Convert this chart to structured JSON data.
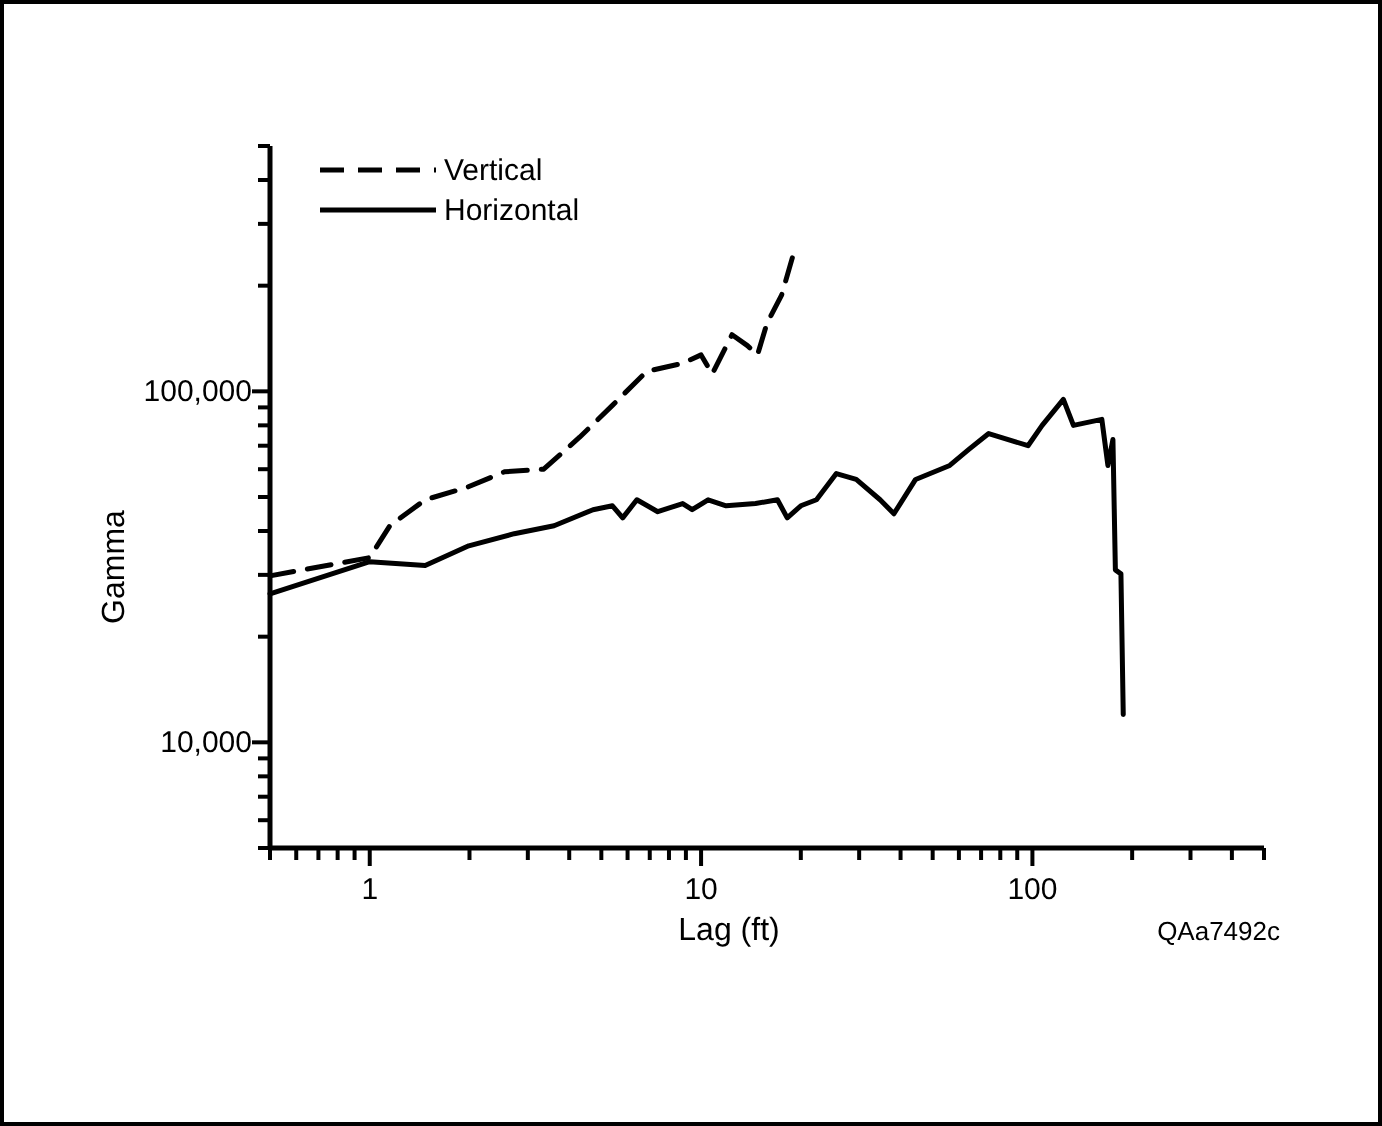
{
  "chart_data": {
    "type": "line",
    "xlabel": "Lag (ft)",
    "ylabel": "Gamma",
    "log": "xy",
    "legend": "top left",
    "annotations": [
      "QAa7492c"
    ],
    "xlim": [
      0.5,
      500
    ],
    "ylim": [
      5000,
      500000
    ],
    "xticks": [
      {
        "value": 0.5,
        "label": null
      },
      {
        "value": 0.6,
        "label": null
      },
      {
        "value": 0.7,
        "label": null
      },
      {
        "value": 0.8,
        "label": null
      },
      {
        "value": 0.9,
        "label": null
      },
      1,
      {
        "value": 2,
        "label": null
      },
      {
        "value": 3,
        "label": null
      },
      {
        "value": 4,
        "label": null
      },
      {
        "value": 5,
        "label": null
      },
      {
        "value": 6,
        "label": null
      },
      {
        "value": 7,
        "label": null
      },
      {
        "value": 8,
        "label": null
      },
      {
        "value": 9,
        "label": null
      },
      10,
      {
        "value": 20,
        "label": null
      },
      {
        "value": 30,
        "label": null
      },
      {
        "value": 40,
        "label": null
      },
      {
        "value": 50,
        "label": null
      },
      {
        "value": 60,
        "label": null
      },
      {
        "value": 70,
        "label": null
      },
      {
        "value": 80,
        "label": null
      },
      {
        "value": 90,
        "label": null
      },
      100,
      {
        "value": 200,
        "label": null
      },
      {
        "value": 300,
        "label": null
      },
      {
        "value": 400,
        "label": null
      },
      {
        "value": 500,
        "label": null
      }
    ],
    "yticks": [
      {
        "value": 5000,
        "label": null
      },
      {
        "value": 6000,
        "label": null
      },
      {
        "value": 7000,
        "label": null
      },
      {
        "value": 8000,
        "label": null
      },
      {
        "value": 9000,
        "label": null
      },
      {
        "value": 10000,
        "label": "10,000"
      },
      {
        "value": 20000,
        "label": null
      },
      {
        "value": 30000,
        "label": null
      },
      {
        "value": 40000,
        "label": null
      },
      {
        "value": 50000,
        "label": null
      },
      {
        "value": 60000,
        "label": null
      },
      {
        "value": 70000,
        "label": null
      },
      {
        "value": 80000,
        "label": null
      },
      {
        "value": 90000,
        "label": null
      },
      {
        "value": 100000,
        "label": "100,000"
      },
      {
        "value": 200000,
        "label": null
      },
      {
        "value": 300000,
        "label": null
      },
      {
        "value": 400000,
        "label": null
      },
      {
        "value": 500000,
        "label": null
      }
    ],
    "series": [
      {
        "name": "Vertical",
        "color": "#000000",
        "line_style": "dashed",
        "x": [
          0.5,
          1,
          1.15,
          1.47,
          1.96,
          2.55,
          3.35,
          4.3,
          5.4,
          6.85,
          8.75,
          10,
          10.8,
          12.4,
          13.8,
          14.8,
          15.8,
          17.5,
          19.2
        ],
        "values": [
          29800,
          33600,
          41400,
          49100,
          53200,
          59000,
          60000,
          74000,
          91200,
          114000,
          120000,
          127000,
          112000,
          145000,
          135000,
          127000,
          156000,
          188000,
          255000
        ]
      },
      {
        "name": "Horizontal",
        "color": "#000000",
        "line_style": "solid",
        "x": [
          0.5,
          1,
          1.47,
          1.99,
          2.73,
          3.6,
          4.72,
          5.4,
          5.8,
          6.4,
          7.4,
          8.8,
          9.4,
          10.5,
          11.9,
          14.6,
          17,
          18.2,
          20,
          22.3,
          25.6,
          29.4,
          34.7,
          38.2,
          44.4,
          56.3,
          64.3,
          73.8,
          97,
          107,
          124,
          133,
          162,
          169,
          175,
          178,
          185,
          188
        ],
        "values": [
          26500,
          32700,
          31900,
          36300,
          39300,
          41400,
          46000,
          47200,
          43600,
          49100,
          45400,
          47900,
          46000,
          49100,
          47200,
          47900,
          49100,
          43600,
          47200,
          49100,
          58300,
          56100,
          49100,
          44800,
          56100,
          61500,
          68300,
          75800,
          70000,
          80000,
          94900,
          80000,
          83200,
          61500,
          72900,
          31000,
          30200,
          12000
        ]
      }
    ]
  }
}
